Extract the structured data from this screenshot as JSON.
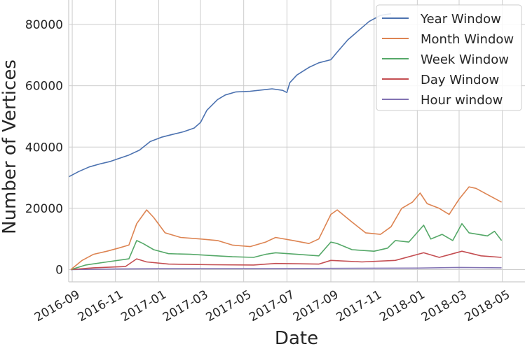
{
  "chart_data": {
    "type": "line",
    "xlabel": "Date",
    "ylabel": "Number of Vertices",
    "xlim": [
      "2016-08-27",
      "2018-06-02"
    ],
    "ylim": [
      -4000,
      88000
    ],
    "xticks": [
      {
        "date": "2016-09-01",
        "label": "2016-09"
      },
      {
        "date": "2016-11-01",
        "label": "2016-11"
      },
      {
        "date": "2017-01-01",
        "label": "2017-01"
      },
      {
        "date": "2017-03-01",
        "label": "2017-03"
      },
      {
        "date": "2017-05-01",
        "label": "2017-05"
      },
      {
        "date": "2017-07-01",
        "label": "2017-07"
      },
      {
        "date": "2017-09-01",
        "label": "2017-09"
      },
      {
        "date": "2017-11-01",
        "label": "2017-11"
      },
      {
        "date": "2018-01-01",
        "label": "2018-01"
      },
      {
        "date": "2018-03-01",
        "label": "2018-03"
      },
      {
        "date": "2018-05-01",
        "label": "2018-05"
      }
    ],
    "yticks": [
      0,
      20000,
      40000,
      60000,
      80000
    ],
    "grid": true,
    "legend": "top-right",
    "series": [
      {
        "name": "Year Window",
        "color": "#4c72b0",
        "points": [
          [
            "2016-08-27",
            30300
          ],
          [
            "2016-09-10",
            32000
          ],
          [
            "2016-09-25",
            33500
          ],
          [
            "2016-10-10",
            34500
          ],
          [
            "2016-10-25",
            35300
          ],
          [
            "2016-11-05",
            36200
          ],
          [
            "2016-11-20",
            37400
          ],
          [
            "2016-12-05",
            39000
          ],
          [
            "2016-12-20",
            41800
          ],
          [
            "2017-01-05",
            43200
          ],
          [
            "2017-01-20",
            44100
          ],
          [
            "2017-02-05",
            45000
          ],
          [
            "2017-02-20",
            46200
          ],
          [
            "2017-03-01",
            48000
          ],
          [
            "2017-03-10",
            52000
          ],
          [
            "2017-03-25",
            55500
          ],
          [
            "2017-04-05",
            57000
          ],
          [
            "2017-04-20",
            58000
          ],
          [
            "2017-05-10",
            58200
          ],
          [
            "2017-05-25",
            58600
          ],
          [
            "2017-06-10",
            59000
          ],
          [
            "2017-06-25",
            58500
          ],
          [
            "2017-07-01",
            57800
          ],
          [
            "2017-07-05",
            61000
          ],
          [
            "2017-07-15",
            63500
          ],
          [
            "2017-08-01",
            66000
          ],
          [
            "2017-08-15",
            67500
          ],
          [
            "2017-09-01",
            68500
          ],
          [
            "2017-09-10",
            71000
          ],
          [
            "2017-09-25",
            75000
          ],
          [
            "2017-10-10",
            78000
          ],
          [
            "2017-10-25",
            81000
          ],
          [
            "2017-11-10",
            83000
          ],
          [
            "2017-11-25",
            83500
          ]
        ]
      },
      {
        "name": "Month Window",
        "color": "#dd8452",
        "points": [
          [
            "2016-08-30",
            0
          ],
          [
            "2016-09-15",
            3000
          ],
          [
            "2016-10-01",
            5000
          ],
          [
            "2016-10-20",
            6000
          ],
          [
            "2016-11-05",
            7000
          ],
          [
            "2016-11-20",
            8000
          ],
          [
            "2016-12-01",
            15000
          ],
          [
            "2016-12-15",
            19500
          ],
          [
            "2016-12-25",
            17000
          ],
          [
            "2017-01-10",
            12000
          ],
          [
            "2017-02-01",
            10500
          ],
          [
            "2017-03-01",
            10000
          ],
          [
            "2017-03-25",
            9500
          ],
          [
            "2017-04-15",
            8000
          ],
          [
            "2017-05-10",
            7500
          ],
          [
            "2017-06-01",
            9000
          ],
          [
            "2017-06-15",
            10500
          ],
          [
            "2017-07-10",
            9500
          ],
          [
            "2017-08-01",
            8500
          ],
          [
            "2017-08-15",
            10000
          ],
          [
            "2017-09-01",
            18000
          ],
          [
            "2017-09-10",
            19500
          ],
          [
            "2017-10-01",
            15500
          ],
          [
            "2017-10-20",
            12000
          ],
          [
            "2017-11-10",
            11500
          ],
          [
            "2017-11-25",
            14000
          ],
          [
            "2017-12-10",
            20000
          ],
          [
            "2017-12-25",
            22000
          ],
          [
            "2018-01-05",
            25000
          ],
          [
            "2018-01-15",
            21500
          ],
          [
            "2018-02-01",
            20000
          ],
          [
            "2018-02-15",
            18000
          ],
          [
            "2018-03-01",
            23000
          ],
          [
            "2018-03-15",
            27000
          ],
          [
            "2018-03-25",
            26500
          ],
          [
            "2018-04-10",
            24500
          ],
          [
            "2018-04-30",
            22000
          ]
        ]
      },
      {
        "name": "Week Window",
        "color": "#55a868",
        "points": [
          [
            "2016-08-30",
            0
          ],
          [
            "2016-09-20",
            1500
          ],
          [
            "2016-10-20",
            2500
          ],
          [
            "2016-11-20",
            3500
          ],
          [
            "2016-12-01",
            9500
          ],
          [
            "2016-12-10",
            8500
          ],
          [
            "2016-12-25",
            6500
          ],
          [
            "2017-01-15",
            5200
          ],
          [
            "2017-02-15",
            5000
          ],
          [
            "2017-03-15",
            4600
          ],
          [
            "2017-04-15",
            4200
          ],
          [
            "2017-05-15",
            4000
          ],
          [
            "2017-06-01",
            5000
          ],
          [
            "2017-06-15",
            5500
          ],
          [
            "2017-07-15",
            5000
          ],
          [
            "2017-08-15",
            4500
          ],
          [
            "2017-09-01",
            9000
          ],
          [
            "2017-09-10",
            8500
          ],
          [
            "2017-10-01",
            6500
          ],
          [
            "2017-11-01",
            6000
          ],
          [
            "2017-11-20",
            7000
          ],
          [
            "2017-12-01",
            9500
          ],
          [
            "2017-12-20",
            9000
          ],
          [
            "2018-01-10",
            14500
          ],
          [
            "2018-01-20",
            10000
          ],
          [
            "2018-02-05",
            11500
          ],
          [
            "2018-02-20",
            9500
          ],
          [
            "2018-03-05",
            15000
          ],
          [
            "2018-03-15",
            12000
          ],
          [
            "2018-04-10",
            11000
          ],
          [
            "2018-04-20",
            12500
          ],
          [
            "2018-04-30",
            9500
          ]
        ]
      },
      {
        "name": "Day Window",
        "color": "#c44e52",
        "points": [
          [
            "2016-08-30",
            0
          ],
          [
            "2016-10-01",
            600
          ],
          [
            "2016-11-15",
            1000
          ],
          [
            "2016-12-01",
            3500
          ],
          [
            "2016-12-15",
            2500
          ],
          [
            "2017-01-15",
            1800
          ],
          [
            "2017-03-15",
            1600
          ],
          [
            "2017-05-15",
            1500
          ],
          [
            "2017-06-15",
            2000
          ],
          [
            "2017-08-15",
            1800
          ],
          [
            "2017-09-01",
            3000
          ],
          [
            "2017-10-15",
            2500
          ],
          [
            "2017-12-01",
            3000
          ],
          [
            "2018-01-10",
            5500
          ],
          [
            "2018-02-01",
            4000
          ],
          [
            "2018-03-05",
            6000
          ],
          [
            "2018-04-01",
            4500
          ],
          [
            "2018-04-30",
            4000
          ]
        ]
      },
      {
        "name": "Hour window",
        "color": "#8172b2",
        "points": [
          [
            "2016-08-30",
            0
          ],
          [
            "2016-11-01",
            200
          ],
          [
            "2017-01-01",
            300
          ],
          [
            "2017-05-01",
            300
          ],
          [
            "2017-09-01",
            400
          ],
          [
            "2018-01-01",
            500
          ],
          [
            "2018-03-01",
            700
          ],
          [
            "2018-04-30",
            600
          ]
        ]
      }
    ]
  }
}
